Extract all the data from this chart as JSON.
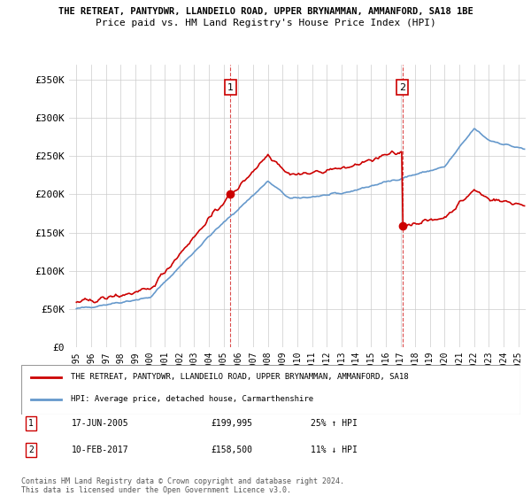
{
  "title": "THE RETREAT, PANTYDWR, LLANDEILO ROAD, UPPER BRYNAMMAN, AMMANFORD, SA18 1BE",
  "subtitle": "Price paid vs. HM Land Registry's House Price Index (HPI)",
  "ylabel_ticks": [
    "£0",
    "£50K",
    "£100K",
    "£150K",
    "£200K",
    "£250K",
    "£300K",
    "£350K"
  ],
  "ytick_values": [
    0,
    50000,
    100000,
    150000,
    200000,
    250000,
    300000,
    350000
  ],
  "ylim": [
    0,
    370000
  ],
  "xlim_start": 1994.5,
  "xlim_end": 2025.5,
  "transaction1": {
    "date": "17-JUN-2005",
    "price": 199995,
    "label": "1",
    "x": 2005.46
  },
  "transaction2": {
    "date": "10-FEB-2017",
    "price": 158500,
    "label": "2",
    "x": 2017.12
  },
  "legend_property": "THE RETREAT, PANTYDWR, LLANDEILO ROAD, UPPER BRYNAMMAN, AMMANFORD, SA18",
  "legend_hpi": "HPI: Average price, detached house, Carmarthenshire",
  "footnote1": "Contains HM Land Registry data © Crown copyright and database right 2024.",
  "footnote2": "This data is licensed under the Open Government Licence v3.0.",
  "property_color": "#cc0000",
  "hpi_color": "#6699cc",
  "vline_color": "#cc0000",
  "background_color": "#ffffff",
  "grid_color": "#cccccc"
}
